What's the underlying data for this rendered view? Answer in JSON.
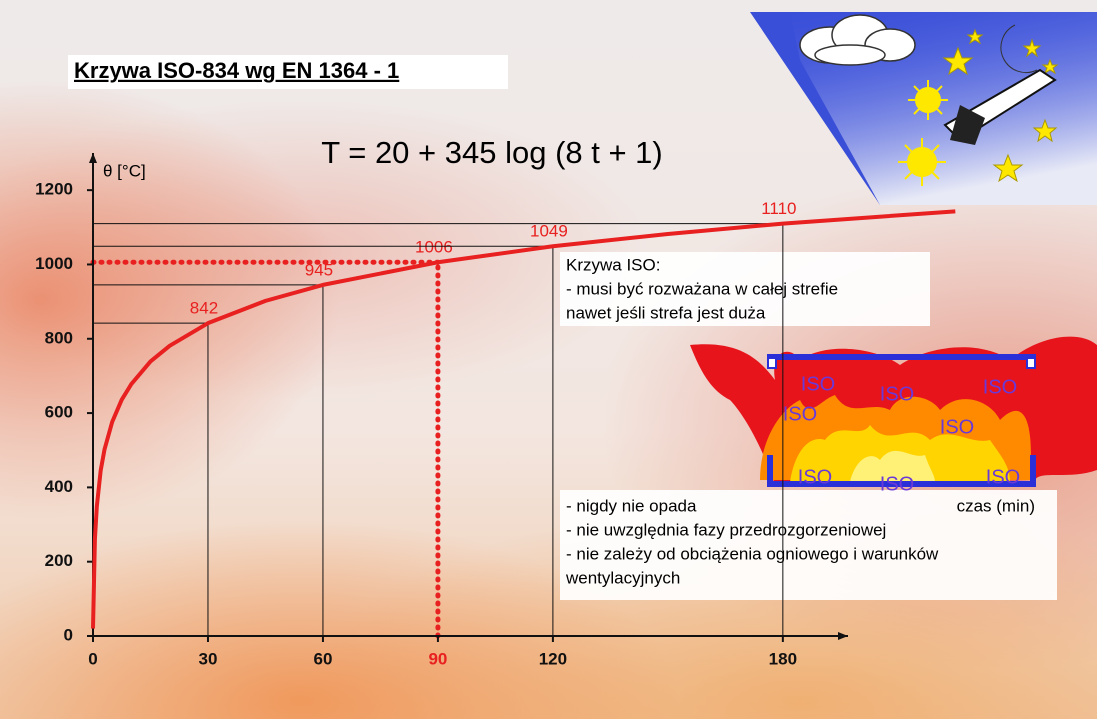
{
  "chart_data": {
    "type": "line",
    "title": "Krzywa ISO-834 wg EN 1364 - 1",
    "formula": "T = 20 + 345 log (8 t + 1)",
    "y_label": "θ [°C]",
    "x_label": "czas (min)",
    "xlim": [
      0,
      197
    ],
    "ylim": [
      0,
      1300
    ],
    "xticks": [
      0,
      30,
      60,
      90,
      120,
      180
    ],
    "yticks": [
      0,
      200,
      400,
      600,
      800,
      1000,
      1200
    ],
    "x": [
      0,
      0.5,
      1,
      2,
      3,
      5,
      7.5,
      10,
      15,
      20,
      30,
      45,
      60,
      90,
      120,
      150,
      180,
      225
    ],
    "series": [
      {
        "color": "#e82020",
        "values": [
          20,
          261,
          349,
          445,
          502,
          576,
          636,
          678,
          739,
          781,
          842,
          902,
          945,
          1006,
          1049,
          1082,
          1110,
          1143
        ]
      }
    ],
    "reference_points": [
      {
        "x": 30,
        "value": 842,
        "style": "solid"
      },
      {
        "x": 60,
        "value": 945,
        "style": "solid"
      },
      {
        "x": 90,
        "value": 1006,
        "style": "dotted"
      },
      {
        "x": 120,
        "value": 1049,
        "style": "solid"
      },
      {
        "x": 180,
        "value": 1110,
        "style": "solid"
      }
    ],
    "note_top": [
      "Krzywa ISO:",
      "- musi być rozważana w całej strefie",
      "nawet jeśli strefa jest duża"
    ],
    "note_bottom": [
      "- nigdy nie opada",
      "- nie uwzględnia fazy przedrozgorzeniowej",
      "- nie zależy od obciążenia ogniowego i warunków",
      "wentylacyjnych"
    ],
    "fire_labels": [
      "ISO",
      "ISO",
      "ISO",
      "ISO",
      "ISO",
      "ISO",
      "ISO",
      "ISO"
    ]
  }
}
